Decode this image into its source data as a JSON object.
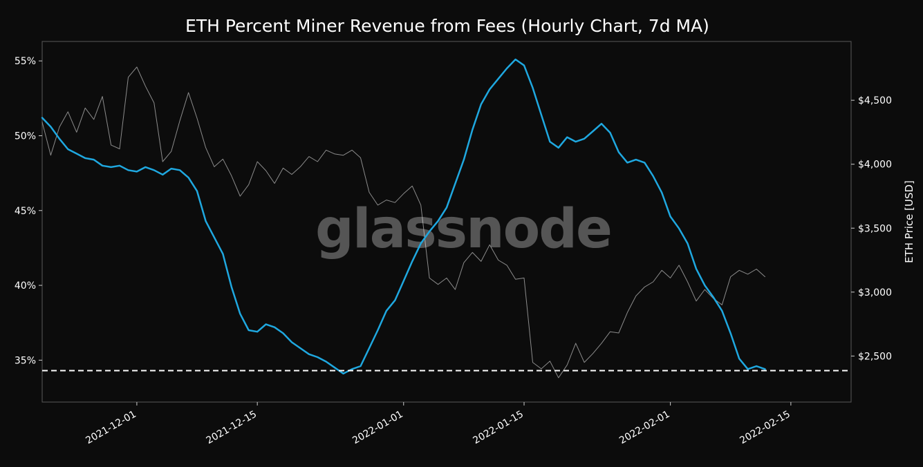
{
  "chart_data": {
    "type": "line",
    "title": "ETH Percent Miner Revenue from Fees (Hourly Chart, 7d MA)",
    "watermark": "glassnode",
    "x_axis": {
      "type": "date",
      "range": [
        "2021-11-20",
        "2022-02-22"
      ],
      "ticks": [
        "2021-12-01",
        "2021-12-15",
        "2022-01-01",
        "2022-01-15",
        "2022-02-01",
        "2022-02-15"
      ]
    },
    "y_left": {
      "unit": "%",
      "range": [
        32.2,
        56.3
      ],
      "ticks": [
        35,
        40,
        45,
        50,
        55
      ],
      "tick_labels": [
        "35%",
        "40%",
        "45%",
        "50%",
        "55%"
      ]
    },
    "y_right": {
      "label": "ETH Price [USD]",
      "range": [
        2140,
        4960
      ],
      "ticks": [
        2500,
        3000,
        3500,
        4000,
        4500
      ],
      "tick_labels": [
        "$2,500",
        "$3,000",
        "$3,500",
        "$4,000",
        "$4,500"
      ]
    },
    "reference_line": {
      "axis": "left",
      "value": 34.3,
      "style": "dashed",
      "color": "#ffffff"
    },
    "series": [
      {
        "axis": "left",
        "color": "#1fa8e0",
        "points": [
          [
            "2021-11-20",
            51.2
          ],
          [
            "2021-11-21",
            50.6
          ],
          [
            "2021-11-22",
            49.8
          ],
          [
            "2021-11-23",
            49.1
          ],
          [
            "2021-11-24",
            48.8
          ],
          [
            "2021-11-25",
            48.5
          ],
          [
            "2021-11-26",
            48.4
          ],
          [
            "2021-11-27",
            48.0
          ],
          [
            "2021-11-28",
            47.9
          ],
          [
            "2021-11-29",
            48.0
          ],
          [
            "2021-11-30",
            47.7
          ],
          [
            "2021-12-01",
            47.6
          ],
          [
            "2021-12-02",
            47.9
          ],
          [
            "2021-12-03",
            47.7
          ],
          [
            "2021-12-04",
            47.4
          ],
          [
            "2021-12-05",
            47.8
          ],
          [
            "2021-12-06",
            47.7
          ],
          [
            "2021-12-07",
            47.2
          ],
          [
            "2021-12-08",
            46.3
          ],
          [
            "2021-12-09",
            44.3
          ],
          [
            "2021-12-10",
            43.2
          ],
          [
            "2021-12-11",
            42.1
          ],
          [
            "2021-12-12",
            39.9
          ],
          [
            "2021-12-13",
            38.1
          ],
          [
            "2021-12-14",
            37.0
          ],
          [
            "2021-12-15",
            36.9
          ],
          [
            "2021-12-16",
            37.4
          ],
          [
            "2021-12-17",
            37.2
          ],
          [
            "2021-12-18",
            36.8
          ],
          [
            "2021-12-19",
            36.2
          ],
          [
            "2021-12-20",
            35.8
          ],
          [
            "2021-12-21",
            35.4
          ],
          [
            "2021-12-22",
            35.2
          ],
          [
            "2021-12-23",
            34.9
          ],
          [
            "2021-12-24",
            34.5
          ],
          [
            "2021-12-25",
            34.1
          ],
          [
            "2021-12-26",
            34.4
          ],
          [
            "2021-12-27",
            34.6
          ],
          [
            "2021-12-28",
            35.8
          ],
          [
            "2021-12-29",
            37.0
          ],
          [
            "2021-12-30",
            38.3
          ],
          [
            "2021-12-31",
            39.0
          ],
          [
            "2022-01-01",
            40.3
          ],
          [
            "2022-01-02",
            41.6
          ],
          [
            "2022-01-03",
            42.8
          ],
          [
            "2022-01-04",
            43.6
          ],
          [
            "2022-01-05",
            44.3
          ],
          [
            "2022-01-06",
            45.2
          ],
          [
            "2022-01-07",
            46.8
          ],
          [
            "2022-01-08",
            48.4
          ],
          [
            "2022-01-09",
            50.4
          ],
          [
            "2022-01-10",
            52.1
          ],
          [
            "2022-01-11",
            53.1
          ],
          [
            "2022-01-12",
            53.8
          ],
          [
            "2022-01-13",
            54.5
          ],
          [
            "2022-01-14",
            55.1
          ],
          [
            "2022-01-15",
            54.7
          ],
          [
            "2022-01-16",
            53.2
          ],
          [
            "2022-01-17",
            51.4
          ],
          [
            "2022-01-18",
            49.6
          ],
          [
            "2022-01-19",
            49.2
          ],
          [
            "2022-01-20",
            49.9
          ],
          [
            "2022-01-21",
            49.6
          ],
          [
            "2022-01-22",
            49.8
          ],
          [
            "2022-01-23",
            50.3
          ],
          [
            "2022-01-24",
            50.8
          ],
          [
            "2022-01-25",
            50.2
          ],
          [
            "2022-01-26",
            48.9
          ],
          [
            "2022-01-27",
            48.2
          ],
          [
            "2022-01-28",
            48.4
          ],
          [
            "2022-01-29",
            48.2
          ],
          [
            "2022-01-30",
            47.3
          ],
          [
            "2022-01-31",
            46.2
          ],
          [
            "2022-02-01",
            44.6
          ],
          [
            "2022-02-02",
            43.8
          ],
          [
            "2022-02-03",
            42.8
          ],
          [
            "2022-02-04",
            41.1
          ],
          [
            "2022-02-05",
            40.0
          ],
          [
            "2022-02-06",
            39.2
          ],
          [
            "2022-02-07",
            38.3
          ],
          [
            "2022-02-08",
            36.8
          ],
          [
            "2022-02-09",
            35.1
          ],
          [
            "2022-02-10",
            34.4
          ],
          [
            "2022-02-11",
            34.6
          ],
          [
            "2022-02-12",
            34.4
          ]
        ]
      },
      {
        "axis": "right",
        "color": "#8c8c8c",
        "points": [
          [
            "2021-11-20",
            4330
          ],
          [
            "2021-11-21",
            4070
          ],
          [
            "2021-11-22",
            4290
          ],
          [
            "2021-11-23",
            4410
          ],
          [
            "2021-11-24",
            4250
          ],
          [
            "2021-11-25",
            4440
          ],
          [
            "2021-11-26",
            4350
          ],
          [
            "2021-11-27",
            4530
          ],
          [
            "2021-11-28",
            4150
          ],
          [
            "2021-11-29",
            4120
          ],
          [
            "2021-11-30",
            4680
          ],
          [
            "2021-12-01",
            4760
          ],
          [
            "2021-12-02",
            4610
          ],
          [
            "2021-12-03",
            4480
          ],
          [
            "2021-12-04",
            4020
          ],
          [
            "2021-12-05",
            4100
          ],
          [
            "2021-12-06",
            4340
          ],
          [
            "2021-12-07",
            4560
          ],
          [
            "2021-12-08",
            4360
          ],
          [
            "2021-12-09",
            4130
          ],
          [
            "2021-12-10",
            3980
          ],
          [
            "2021-12-11",
            4040
          ],
          [
            "2021-12-12",
            3910
          ],
          [
            "2021-12-13",
            3750
          ],
          [
            "2021-12-14",
            3840
          ],
          [
            "2021-12-15",
            4020
          ],
          [
            "2021-12-16",
            3950
          ],
          [
            "2021-12-17",
            3850
          ],
          [
            "2021-12-18",
            3970
          ],
          [
            "2021-12-19",
            3920
          ],
          [
            "2021-12-20",
            3980
          ],
          [
            "2021-12-21",
            4060
          ],
          [
            "2021-12-22",
            4020
          ],
          [
            "2021-12-23",
            4110
          ],
          [
            "2021-12-24",
            4080
          ],
          [
            "2021-12-25",
            4070
          ],
          [
            "2021-12-26",
            4110
          ],
          [
            "2021-12-27",
            4050
          ],
          [
            "2021-12-28",
            3780
          ],
          [
            "2021-12-29",
            3680
          ],
          [
            "2021-12-30",
            3720
          ],
          [
            "2021-12-31",
            3700
          ],
          [
            "2022-01-01",
            3770
          ],
          [
            "2022-01-02",
            3830
          ],
          [
            "2022-01-03",
            3680
          ],
          [
            "2022-01-04",
            3110
          ],
          [
            "2022-01-05",
            3060
          ],
          [
            "2022-01-06",
            3110
          ],
          [
            "2022-01-07",
            3020
          ],
          [
            "2022-01-08",
            3230
          ],
          [
            "2022-01-09",
            3310
          ],
          [
            "2022-01-10",
            3240
          ],
          [
            "2022-01-11",
            3370
          ],
          [
            "2022-01-12",
            3250
          ],
          [
            "2022-01-13",
            3210
          ],
          [
            "2022-01-14",
            3100
          ],
          [
            "2022-01-15",
            3110
          ],
          [
            "2022-01-16",
            2450
          ],
          [
            "2022-01-17",
            2400
          ],
          [
            "2022-01-18",
            2460
          ],
          [
            "2022-01-19",
            2330
          ],
          [
            "2022-01-20",
            2430
          ],
          [
            "2022-01-21",
            2600
          ],
          [
            "2022-01-22",
            2450
          ],
          [
            "2022-01-23",
            2520
          ],
          [
            "2022-01-24",
            2600
          ],
          [
            "2022-01-25",
            2690
          ],
          [
            "2022-01-26",
            2680
          ],
          [
            "2022-01-27",
            2840
          ],
          [
            "2022-01-28",
            2970
          ],
          [
            "2022-01-29",
            3040
          ],
          [
            "2022-01-30",
            3080
          ],
          [
            "2022-01-31",
            3170
          ],
          [
            "2022-02-01",
            3110
          ],
          [
            "2022-02-02",
            3210
          ],
          [
            "2022-02-03",
            3080
          ],
          [
            "2022-02-04",
            2930
          ],
          [
            "2022-02-05",
            3020
          ],
          [
            "2022-02-06",
            2950
          ],
          [
            "2022-02-07",
            2900
          ],
          [
            "2022-02-08",
            3120
          ],
          [
            "2022-02-09",
            3170
          ],
          [
            "2022-02-10",
            3140
          ],
          [
            "2022-02-11",
            3180
          ],
          [
            "2022-02-12",
            3120
          ]
        ]
      }
    ]
  }
}
